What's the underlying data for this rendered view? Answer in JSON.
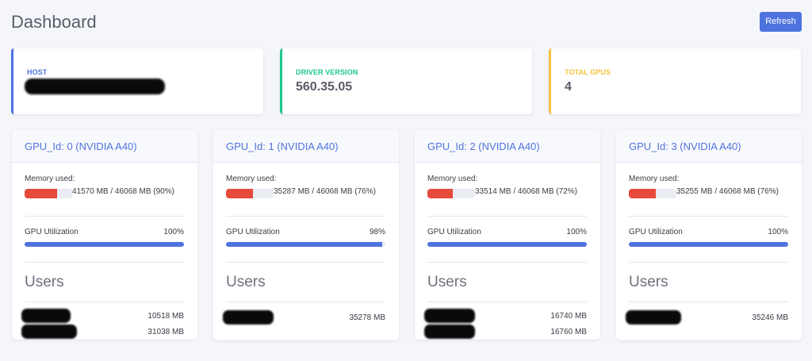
{
  "header": {
    "title": "Dashboard",
    "refresh_label": "Refresh"
  },
  "colors": {
    "primary": "#4e73df",
    "success": "#1cc88a",
    "warning": "#f6c23e",
    "danger": "#e74a3b"
  },
  "stats": [
    {
      "label": "HOST",
      "value": "",
      "redacted": true,
      "accent": "#4e73df"
    },
    {
      "label": "DRIVER VERSION",
      "value": "560.35.05",
      "accent": "#1cc88a"
    },
    {
      "label": "TOTAL GPUS",
      "value": "4",
      "accent": "#f6c23e"
    }
  ],
  "gpus": [
    {
      "title": "GPU_Id: 0 (NVIDIA A40)",
      "memory_label": "Memory used:",
      "memory_text": "41570 MB / 46068 MB (90%)",
      "memory_fraction": 0.9,
      "util_label": "GPU Utilization",
      "util_value": "100%",
      "util_fraction": 1.0,
      "users_title": "Users",
      "users": [
        {
          "mem": "10518 MB"
        },
        {
          "mem": "31038 MB"
        }
      ]
    },
    {
      "title": "GPU_Id: 1 (NVIDIA A40)",
      "memory_label": "Memory used:",
      "memory_text": "35287 MB / 46068 MB (76%)",
      "memory_fraction": 0.76,
      "util_label": "GPU Utilization",
      "util_value": "98%",
      "util_fraction": 0.98,
      "users_title": "Users",
      "users": [
        {
          "mem": "35278 MB"
        }
      ]
    },
    {
      "title": "GPU_Id: 2 (NVIDIA A40)",
      "memory_label": "Memory used:",
      "memory_text": "33514 MB / 46068 MB (72%)",
      "memory_fraction": 0.72,
      "util_label": "GPU Utilization",
      "util_value": "100%",
      "util_fraction": 1.0,
      "users_title": "Users",
      "users": [
        {
          "mem": "16740 MB"
        },
        {
          "mem": "16760 MB"
        }
      ]
    },
    {
      "title": "GPU_Id: 3 (NVIDIA A40)",
      "memory_label": "Memory used:",
      "memory_text": "35255 MB / 46068 MB (76%)",
      "memory_fraction": 0.76,
      "util_label": "GPU Utilization",
      "util_value": "100%",
      "util_fraction": 1.0,
      "users_title": "Users",
      "users": [
        {
          "mem": "35246 MB"
        }
      ]
    }
  ]
}
